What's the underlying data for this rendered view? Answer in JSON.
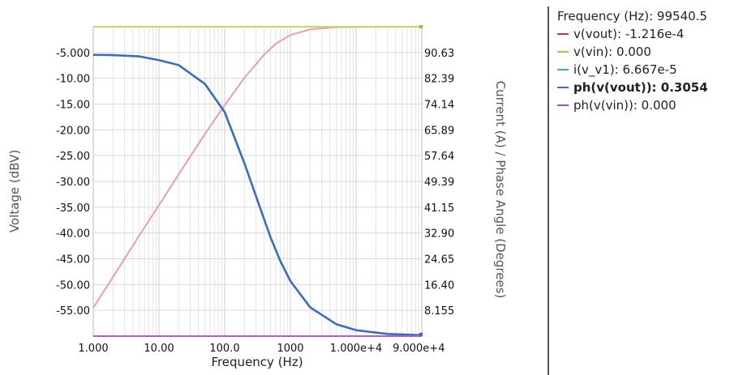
{
  "chart_data": {
    "type": "line",
    "xlabel": "Frequency (Hz)",
    "ylabel_left": "Voltage (dBV)",
    "ylabel_right": "Current (A) / Phase Angle (Degrees)",
    "x_scale": "log",
    "xlim": [
      1,
      100000
    ],
    "ylim_left": [
      -60,
      0
    ],
    "ylim_right": [
      0,
      98.875
    ],
    "x_tick_labels": [
      "1.000",
      "10.00",
      "100.0",
      "1000",
      "1.000e+4",
      "9.000e+4"
    ],
    "y_left_tick_labels": [
      "-5.000",
      "-10.00",
      "-15.00",
      "-20.00",
      "-25.00",
      "-30.00",
      "-35.00",
      "-40.00",
      "-45.00",
      "-50.00",
      "-55.00"
    ],
    "y_right_tick_labels": [
      "90.63",
      "82.39",
      "74.14",
      "65.89",
      "57.64",
      "49.39",
      "41.15",
      "32.90",
      "24.65",
      "16.40",
      "8.155"
    ],
    "grid": true,
    "series": [
      {
        "name": "v(vout)",
        "axis": "left",
        "color": "#e8a1a1",
        "x": [
          1,
          2,
          5,
          10,
          20,
          50,
          100,
          200,
          400,
          600,
          1000,
          2000,
          5000,
          10000,
          50000,
          100000
        ],
        "y": [
          -54.5,
          -48.5,
          -40.5,
          -34.6,
          -28.6,
          -20.8,
          -15.2,
          -9.9,
          -5.4,
          -3.3,
          -1.6,
          -0.5,
          -0.1,
          -0.03,
          -0.001,
          -0.0001216
        ]
      },
      {
        "name": "v(vin)",
        "axis": "left",
        "color": "#c5d66a",
        "x": [
          1,
          100000
        ],
        "y": [
          0,
          0
        ]
      },
      {
        "name": "i(v_v1)",
        "axis": "right",
        "color": "#3cb878",
        "x": [],
        "y": []
      },
      {
        "name": "ph(v(vout))",
        "axis": "right",
        "color": "#3b6cc4",
        "x": [
          1,
          2,
          5,
          10,
          20,
          50,
          100,
          200,
          300,
          500,
          700,
          1000,
          2000,
          5000,
          10000,
          30000,
          100000
        ],
        "y": [
          89.9,
          89.8,
          89.4,
          88.2,
          86.6,
          80.6,
          71.6,
          55.2,
          44.7,
          31.5,
          24.1,
          17.6,
          9.2,
          3.8,
          1.9,
          0.7,
          0.3054
        ]
      },
      {
        "name": "ph(v(vin))",
        "axis": "right",
        "color": "#b05ccf",
        "x": [
          1,
          100000
        ],
        "y": [
          0,
          0
        ]
      }
    ]
  },
  "legend": {
    "header": "Frequency (Hz): 99540.5",
    "items": [
      {
        "label": "v(vout): -1.216e-4",
        "color": "#c0393b",
        "bold": false
      },
      {
        "label": "v(vin): 0.000",
        "color": "#a8c93a",
        "bold": false
      },
      {
        "label": "i(v_v1): 6.667e-5",
        "color": "#3cb878",
        "bold": false
      },
      {
        "label": "ph(v(vout)): 0.3054",
        "color": "#3b6cc4",
        "bold": true
      },
      {
        "label": "ph(v(vin)): 0.000",
        "color": "#a44bc4",
        "bold": false
      }
    ]
  }
}
